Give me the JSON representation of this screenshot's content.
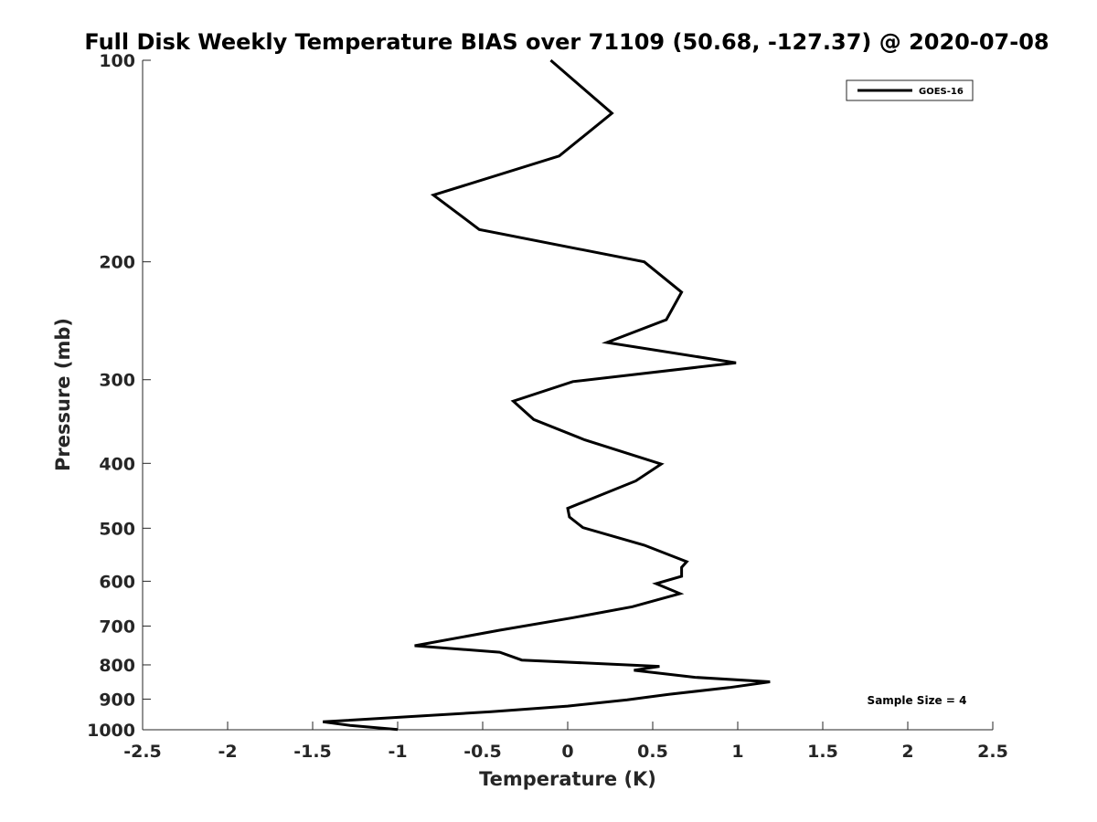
{
  "chart_data": {
    "type": "line",
    "title": "Full Disk Weekly Temperature BIAS over 71109 (50.68, -127.37) @ 2020-07-08",
    "xlabel": "Temperature (K)",
    "ylabel": "Pressure (mb)",
    "xlim": [
      -2.5,
      2.5
    ],
    "ylim": [
      1000,
      100
    ],
    "y_scale": "log",
    "x_ticks": [
      "-2.5",
      "-2",
      "-1.5",
      "-1",
      "-0.5",
      "0",
      "0.5",
      "1",
      "1.5",
      "2",
      "2.5"
    ],
    "y_ticks": [
      "100",
      "200",
      "300",
      "400",
      "500",
      "600",
      "700",
      "800",
      "900",
      "1000"
    ],
    "grid": false,
    "legend_position": "top-right",
    "line_color": "#000000",
    "series": [
      {
        "name": "GOES-16",
        "points": [
          {
            "t": -0.1,
            "p": 100
          },
          {
            "t": 0.26,
            "p": 120
          },
          {
            "t": -0.05,
            "p": 139
          },
          {
            "t": -0.79,
            "p": 159
          },
          {
            "t": -0.52,
            "p": 179
          },
          {
            "t": 0.45,
            "p": 200
          },
          {
            "t": 0.67,
            "p": 222
          },
          {
            "t": 0.58,
            "p": 244
          },
          {
            "t": 0.23,
            "p": 264
          },
          {
            "t": 0.99,
            "p": 283
          },
          {
            "t": 0.03,
            "p": 302
          },
          {
            "t": -0.32,
            "p": 323
          },
          {
            "t": -0.2,
            "p": 344
          },
          {
            "t": 0.1,
            "p": 369
          },
          {
            "t": 0.55,
            "p": 401
          },
          {
            "t": 0.4,
            "p": 425
          },
          {
            "t": 0.0,
            "p": 467
          },
          {
            "t": 0.01,
            "p": 481
          },
          {
            "t": 0.09,
            "p": 499
          },
          {
            "t": 0.45,
            "p": 530
          },
          {
            "t": 0.7,
            "p": 561
          },
          {
            "t": 0.67,
            "p": 572
          },
          {
            "t": 0.67,
            "p": 590
          },
          {
            "t": 0.52,
            "p": 605
          },
          {
            "t": 0.66,
            "p": 626
          },
          {
            "t": 0.38,
            "p": 655
          },
          {
            "t": 0.02,
            "p": 681
          },
          {
            "t": -0.4,
            "p": 710
          },
          {
            "t": -0.9,
            "p": 749
          },
          {
            "t": -0.4,
            "p": 766
          },
          {
            "t": -0.27,
            "p": 787
          },
          {
            "t": 0.54,
            "p": 804
          },
          {
            "t": 0.39,
            "p": 815
          },
          {
            "t": 0.75,
            "p": 835
          },
          {
            "t": 1.19,
            "p": 848
          },
          {
            "t": 0.95,
            "p": 865
          },
          {
            "t": 0.6,
            "p": 885
          },
          {
            "t": 0.35,
            "p": 902
          },
          {
            "t": 0.0,
            "p": 922
          },
          {
            "t": -0.45,
            "p": 940
          },
          {
            "t": -1.44,
            "p": 973
          },
          {
            "t": -1.28,
            "p": 985
          },
          {
            "t": -1.0,
            "p": 999
          }
        ]
      }
    ],
    "annotations": [
      "Sample Size = 4"
    ]
  }
}
